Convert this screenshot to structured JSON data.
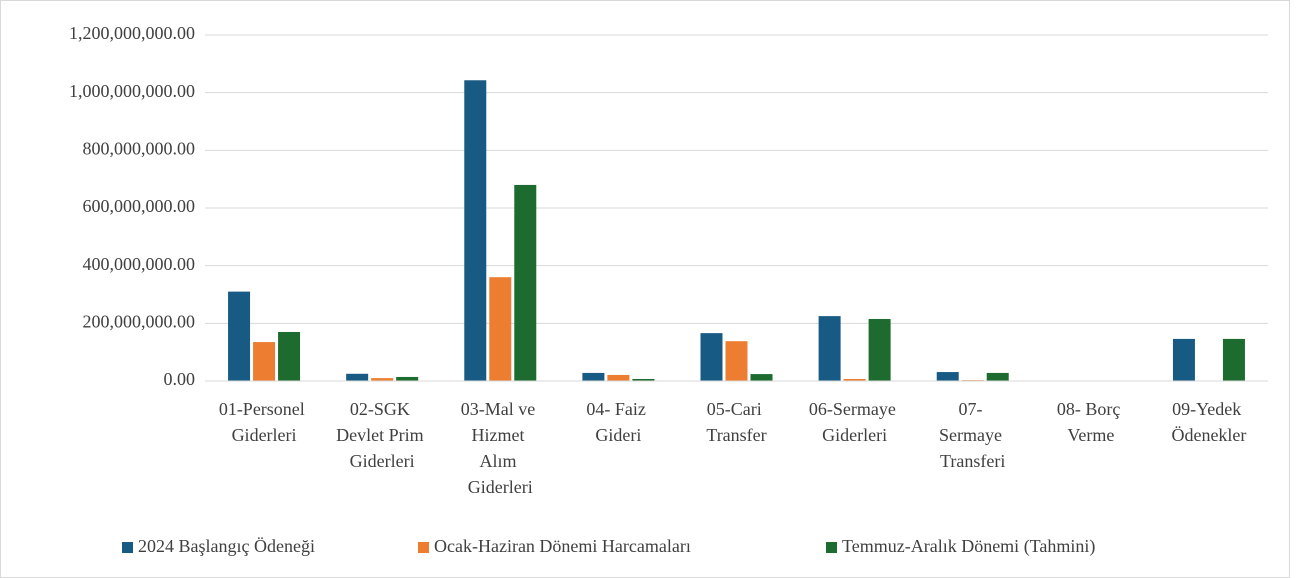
{
  "chart_data": {
    "type": "bar",
    "categories": [
      "01-Personel Giderleri",
      "02-SGK Devlet Prim Giderleri",
      "03-Mal ve Hizmet Alım Giderleri",
      "04- Faiz Gideri",
      "05-Cari Transfer",
      "06-Sermaye Giderleri",
      "07- Sermaye Transferi",
      "08- Borç Verme",
      "09-Yedek Ödenekler"
    ],
    "series": [
      {
        "name": "2024 Başlangıç Ödeneği",
        "color": "#175b84",
        "values": [
          310000000,
          25000000,
          1043000000,
          28000000,
          166000000,
          225000000,
          31000000,
          0,
          146000000
        ]
      },
      {
        "name": "Ocak-Haziran Dönemi Harcamaları",
        "color": "#ed7d31",
        "values": [
          135000000,
          10000000,
          360000000,
          21000000,
          138000000,
          7000000,
          3000000,
          0,
          0
        ]
      },
      {
        "name": "Temmuz-Aralık Dönemi (Tahmini)",
        "color": "#1e6b30",
        "values": [
          170000000,
          14000000,
          680000000,
          7000000,
          24000000,
          215000000,
          28000000,
          0,
          146000000
        ]
      }
    ],
    "ylim": [
      0,
      1200000000
    ],
    "yticks": [
      {
        "value": 0,
        "label": "0.00"
      },
      {
        "value": 200000000,
        "label": "200,000,000.00"
      },
      {
        "value": 400000000,
        "label": "400,000,000.00"
      },
      {
        "value": 600000000,
        "label": "600,000,000.00"
      },
      {
        "value": 800000000,
        "label": "800,000,000.00"
      },
      {
        "value": 1000000000,
        "label": "1,000,000,000.00"
      },
      {
        "value": 1200000000,
        "label": "1,200,000,000.00"
      }
    ],
    "grid": true,
    "legend": "bottom"
  }
}
